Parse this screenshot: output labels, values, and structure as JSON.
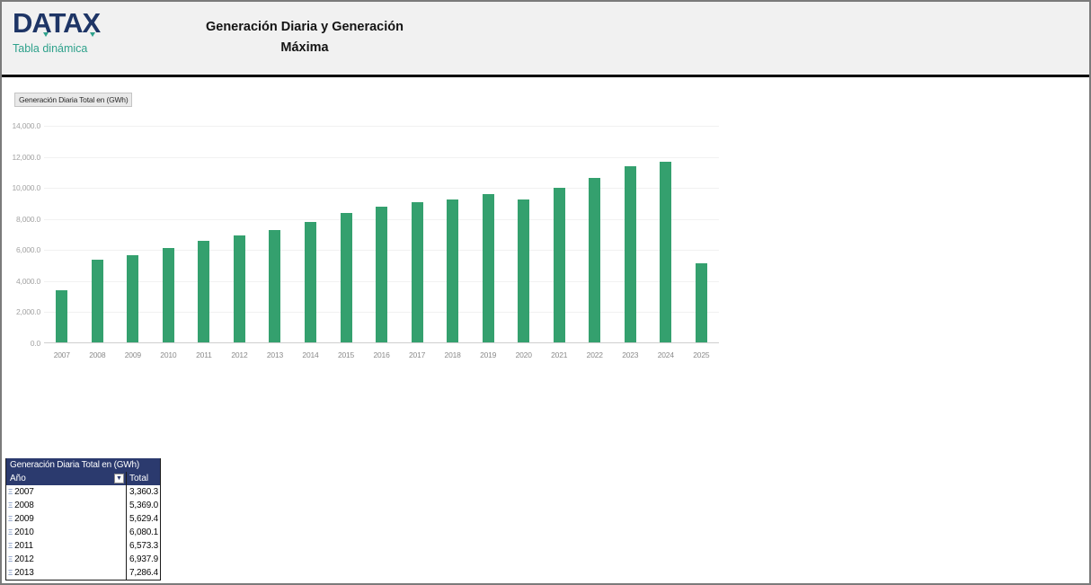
{
  "header": {
    "logo_text": "DATAX",
    "logo_subtitle": "Tabla dinámica",
    "title_line1": "Generación Diaria y Generación",
    "title_line2": "Máxima"
  },
  "chart": {
    "label": "Generación Diaria Total en (GWh)"
  },
  "chart_data": {
    "type": "bar",
    "title": "Generación Diaria Total en (GWh)",
    "categories": [
      "2007",
      "2008",
      "2009",
      "2010",
      "2011",
      "2012",
      "2013",
      "2014",
      "2015",
      "2016",
      "2017",
      "2018",
      "2019",
      "2020",
      "2021",
      "2022",
      "2023",
      "2024",
      "2025"
    ],
    "values": [
      3360.3,
      5369.0,
      5629.4,
      6080.1,
      6573.3,
      6937.9,
      7286.4,
      7800,
      8370,
      8750,
      9050,
      9250,
      9600,
      9210,
      10000,
      10650,
      11370,
      11700,
      5100
    ],
    "xlabel": "",
    "ylabel": "",
    "ylim": [
      0,
      14000
    ],
    "ytick_labels": [
      "0.0",
      "2,000.0",
      "4,000.0",
      "6,000.0",
      "8,000.0",
      "10,000.0",
      "12,000.0",
      "14,000.0"
    ],
    "grid": true,
    "legend_position": "none",
    "bar_color": "#34a06e"
  },
  "pivot_table": {
    "title": "Generación Diaria Total en (GWh)",
    "row_header": "Año",
    "value_header": "Total",
    "filter_icon": "▼",
    "expand_icon": "Ξ",
    "rows": [
      {
        "year": "2007",
        "total": "3,360.3"
      },
      {
        "year": "2008",
        "total": "5,369.0"
      },
      {
        "year": "2009",
        "total": "5,629.4"
      },
      {
        "year": "2010",
        "total": "6,080.1"
      },
      {
        "year": "2011",
        "total": "6,573.3"
      },
      {
        "year": "2012",
        "total": "6,937.9"
      },
      {
        "year": "2013",
        "total": "7,286.4"
      }
    ]
  },
  "colors": {
    "bar_green": "#34a06e",
    "table_navy": "#2b3a6e",
    "logo_navy": "#1e3566",
    "logo_teal": "#2ea18b",
    "header_bg": "#f1f1f1"
  }
}
